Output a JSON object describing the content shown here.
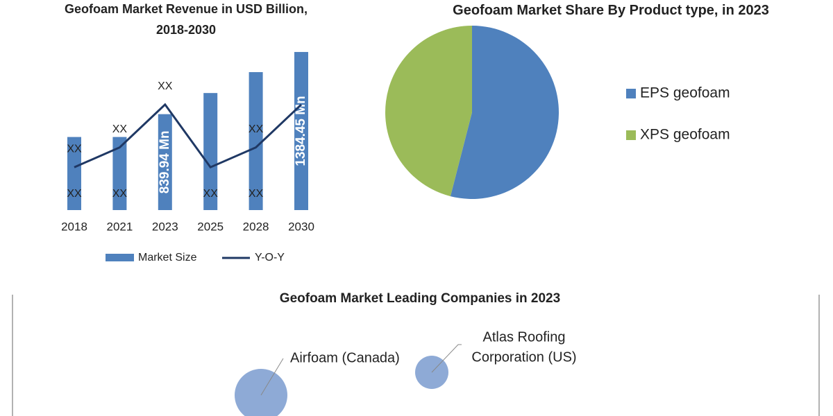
{
  "chart_data": [
    {
      "type": "bar-line",
      "title": "Geofoam Market Revenue in USD Billion, 2018-2030",
      "categories": [
        "2018",
        "2021",
        "2023",
        "2025",
        "2028",
        "2030"
      ],
      "ylim": [
        0,
        1400
      ],
      "y2lim": [
        0,
        250
      ],
      "series": [
        {
          "name": "Market Size",
          "kind": "bar",
          "color": "#4f81bd",
          "values": [
            640,
            640,
            839.94,
            1025,
            1208,
            1384.45
          ],
          "value_labels": [
            "XX",
            "XX",
            "839.94 Mn",
            "XX",
            "XX",
            "1384.45 Mn"
          ]
        },
        {
          "name": "Y-O-Y",
          "kind": "line",
          "axis": "y2",
          "color": "#1f3864",
          "values": [
            67,
            98,
            165,
            67,
            98,
            165
          ],
          "value_labels": [
            "XX",
            "XX",
            "XX",
            null,
            "XX",
            null
          ]
        }
      ]
    },
    {
      "type": "pie",
      "title": "Geofoam Market Share By Product type, in 2023",
      "categories": [
        "EPS geofoam",
        "XPS geofoam"
      ],
      "values": [
        54,
        46
      ],
      "colors": [
        "#4f81bd",
        "#9bbb59"
      ]
    }
  ],
  "companies": {
    "title": "Geofoam Market Leading Companies in 2023",
    "items": [
      {
        "label": [
          "Airfoam (Canada)"
        ]
      },
      {
        "label": [
          "Atlas Roofing",
          "Corporation (US)"
        ]
      }
    ]
  }
}
